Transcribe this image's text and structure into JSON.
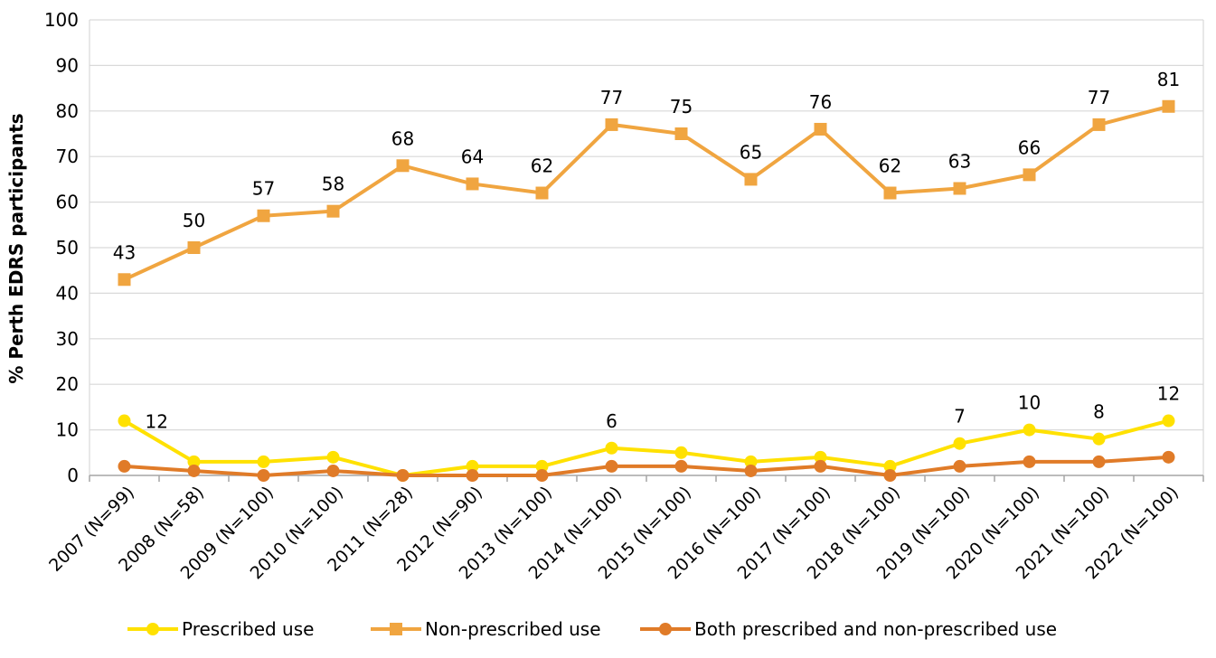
{
  "chart_data": {
    "type": "line",
    "title": "",
    "xlabel": "",
    "ylabel": "% Perth EDRS participants",
    "ylim": [
      0,
      100
    ],
    "yticks": [
      0,
      10,
      20,
      30,
      40,
      50,
      60,
      70,
      80,
      90,
      100
    ],
    "grid": true,
    "legend_position": "bottom",
    "categories": [
      "2007 (N=99)",
      "2008 (N=58)",
      "2009 (N=100)",
      "2010 (N=100)",
      "2011 (N=28)",
      "2012 (N=90)",
      "2013 (N=100)",
      "2014 (N=100)",
      "2015 (N=100)",
      "2016 (N=100)",
      "2017 (N=100)",
      "2018 (N=100)",
      "2019 (N=100)",
      "2020 (N=100)",
      "2021 (N=100)",
      "2022 (N=100)"
    ],
    "series": [
      {
        "name": "Prescribed use",
        "color": "#FFE100",
        "marker": "circle",
        "values": [
          12,
          3,
          3,
          4,
          0,
          2,
          2,
          6,
          5,
          3,
          4,
          2,
          7,
          10,
          8,
          12
        ],
        "labels": [
          "12",
          null,
          null,
          null,
          null,
          null,
          null,
          "6",
          null,
          null,
          null,
          null,
          "7",
          "10",
          "8",
          "12"
        ]
      },
      {
        "name": "Non-prescribed use",
        "color": "#F0A540",
        "marker": "square",
        "values": [
          43,
          50,
          57,
          58,
          68,
          64,
          62,
          77,
          75,
          65,
          76,
          62,
          63,
          66,
          77,
          81
        ],
        "labels": [
          "43",
          "50",
          "57",
          "58",
          "68",
          "64",
          "62",
          "77",
          "75",
          "65",
          "76",
          "62",
          "63",
          "66",
          "77",
          "81"
        ]
      },
      {
        "name": "Both prescribed and non-prescribed use",
        "color": "#E07B28",
        "marker": "circle",
        "values": [
          2,
          1,
          0,
          1,
          0,
          0,
          0,
          2,
          2,
          1,
          2,
          0,
          2,
          3,
          3,
          4
        ],
        "labels": [
          null,
          null,
          null,
          null,
          null,
          null,
          null,
          null,
          null,
          null,
          null,
          null,
          null,
          null,
          null,
          null
        ]
      }
    ]
  }
}
